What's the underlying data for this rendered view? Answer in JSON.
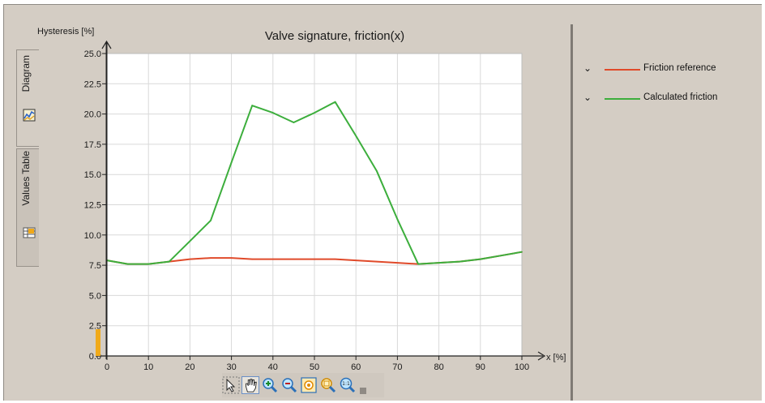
{
  "tabs": [
    {
      "label": "Diagram",
      "icon": "diagram-icon",
      "active": true
    },
    {
      "label": "Values Table",
      "icon": "values-table-icon",
      "active": false
    }
  ],
  "legend": {
    "items": [
      {
        "label": "Friction reference",
        "color": "#e04a2a"
      },
      {
        "label": "Calculated friction",
        "color": "#3cae3c"
      }
    ]
  },
  "toolbar": {
    "buttons": [
      {
        "name": "select-tool-button",
        "icon": "pointer-icon"
      },
      {
        "name": "pan-tool-button",
        "icon": "hand-icon"
      },
      {
        "name": "zoom-in-button",
        "icon": "zoom-in-icon"
      },
      {
        "name": "zoom-out-button",
        "icon": "zoom-out-icon"
      },
      {
        "name": "zoom-fit-button",
        "icon": "zoom-fit-icon"
      },
      {
        "name": "zoom-area-button",
        "icon": "zoom-area-icon"
      },
      {
        "name": "zoom-reset-button",
        "icon": "zoom-1to1-icon",
        "text": "1:1"
      }
    ]
  },
  "chart_data": {
    "type": "line",
    "title": "Valve signature, friction(x)",
    "ylabel": "Hysteresis [%]",
    "xlabel": "x  [%]",
    "xlim": [
      0,
      100
    ],
    "ylim": [
      0,
      25
    ],
    "xticks": [
      "0",
      "10",
      "20",
      "30",
      "40",
      "50",
      "60",
      "70",
      "80",
      "90",
      "100"
    ],
    "yticks": [
      "0.0",
      "2.5",
      "5.0",
      "7.5",
      "10.0",
      "12.5",
      "15.0",
      "17.5",
      "20.0",
      "22.5",
      "25.0"
    ],
    "grid": true,
    "legend_position": "right",
    "series": [
      {
        "name": "Friction reference",
        "color": "#e04a2a",
        "x": [
          0,
          5,
          10,
          15,
          20,
          25,
          30,
          35,
          40,
          45,
          50,
          55,
          60,
          65,
          70,
          75,
          80,
          85,
          90,
          95,
          100
        ],
        "y": [
          7.9,
          7.6,
          7.6,
          7.8,
          8.0,
          8.1,
          8.1,
          8.0,
          8.0,
          8.0,
          8.0,
          8.0,
          7.9,
          7.8,
          7.7,
          7.6,
          7.7,
          7.8,
          8.0,
          8.3,
          8.6
        ]
      },
      {
        "name": "Calculated friction",
        "color": "#3cae3c",
        "x": [
          0,
          5,
          10,
          15,
          20,
          25,
          30,
          35,
          40,
          45,
          50,
          55,
          60,
          65,
          70,
          75,
          80,
          85,
          90,
          95,
          100
        ],
        "y": [
          7.9,
          7.6,
          7.6,
          7.8,
          9.5,
          11.2,
          16.0,
          20.7,
          20.1,
          19.3,
          20.1,
          21.0,
          18.2,
          15.3,
          11.3,
          7.6,
          7.7,
          7.8,
          8.0,
          8.3,
          8.6
        ]
      }
    ]
  }
}
